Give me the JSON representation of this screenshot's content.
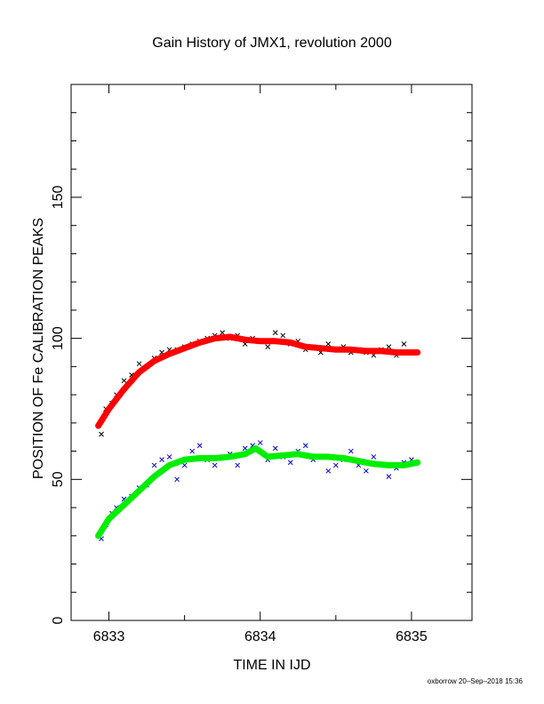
{
  "chart_data": {
    "type": "scatter",
    "title": "Gain History of JMX1, revolution 2000",
    "xlabel": "TIME IN IJD",
    "ylabel": "POSITION OF Fe CALIBRATION PEAKS",
    "xlim": [
      6832.75,
      6835.4
    ],
    "ylim": [
      0,
      190
    ],
    "xticks": [
      "6833",
      "6834",
      "6835"
    ],
    "yticks": [
      "0",
      "50",
      "100",
      "150"
    ],
    "grid": false,
    "footer": "oxborrow 20–Sep–2018 15:36",
    "series": [
      {
        "kind": "points",
        "marker": "x",
        "color": "#000000",
        "x": [
          6832.95,
          6832.98,
          6833.02,
          6833.05,
          6833.1,
          6833.15,
          6833.2,
          6833.25,
          6833.3,
          6833.35,
          6833.4,
          6833.45,
          6833.5,
          6833.55,
          6833.6,
          6833.65,
          6833.7,
          6833.75,
          6833.8,
          6833.85,
          6833.9,
          6833.95,
          6834.0,
          6834.05,
          6834.1,
          6834.15,
          6834.2,
          6834.25,
          6834.3,
          6834.35,
          6834.4,
          6834.45,
          6834.5,
          6834.55,
          6834.6,
          6834.65,
          6834.7,
          6834.75,
          6834.8,
          6834.85,
          6834.9,
          6834.95,
          6835.0
        ],
        "y": [
          66,
          75,
          77,
          80,
          85,
          87,
          91,
          90,
          93,
          95,
          96,
          96,
          97,
          98,
          99,
          100,
          101,
          102,
          100,
          101,
          98,
          100,
          99,
          97,
          102,
          101,
          98,
          99,
          96,
          97,
          95,
          98,
          96,
          97,
          95,
          96,
          95,
          94,
          96,
          97,
          94,
          98,
          95
        ]
      },
      {
        "kind": "curve",
        "color": "#ff0000",
        "x": [
          6832.93,
          6833.0,
          6833.1,
          6833.2,
          6833.3,
          6833.4,
          6833.5,
          6833.6,
          6833.7,
          6833.8,
          6833.9,
          6834.0,
          6834.1,
          6834.2,
          6834.3,
          6834.4,
          6834.5,
          6834.6,
          6834.7,
          6834.8,
          6834.9,
          6835.04
        ],
        "y": [
          69,
          75,
          82,
          88,
          92,
          94.5,
          96.5,
          98.5,
          100,
          100.5,
          99.5,
          99,
          99,
          98.5,
          97,
          96.5,
          96,
          96,
          95.5,
          95.5,
          95,
          95
        ]
      },
      {
        "kind": "points",
        "marker": "x",
        "color": "#0000cc",
        "x": [
          6832.95,
          6832.98,
          6833.02,
          6833.05,
          6833.1,
          6833.15,
          6833.2,
          6833.25,
          6833.3,
          6833.35,
          6833.4,
          6833.45,
          6833.5,
          6833.55,
          6833.6,
          6833.65,
          6833.7,
          6833.75,
          6833.8,
          6833.85,
          6833.9,
          6833.95,
          6834.0,
          6834.05,
          6834.1,
          6834.15,
          6834.2,
          6834.25,
          6834.3,
          6834.35,
          6834.4,
          6834.45,
          6834.5,
          6834.55,
          6834.6,
          6834.65,
          6834.7,
          6834.75,
          6834.8,
          6834.85,
          6834.9,
          6834.95,
          6835.0
        ],
        "y": [
          29,
          34,
          38,
          40,
          43,
          44,
          47,
          48,
          55,
          57,
          58,
          50,
          55,
          60,
          62,
          57,
          55,
          58,
          59,
          55,
          61,
          62,
          63,
          57,
          61,
          58,
          56,
          60,
          62,
          57,
          58,
          53,
          55,
          57,
          60,
          55,
          53,
          58,
          55,
          51,
          54,
          56,
          57
        ]
      },
      {
        "kind": "curve",
        "color": "#00ee00",
        "x": [
          6832.93,
          6833.0,
          6833.1,
          6833.2,
          6833.3,
          6833.4,
          6833.5,
          6833.6,
          6833.7,
          6833.8,
          6833.9,
          6833.97,
          6834.05,
          6834.15,
          6834.25,
          6834.35,
          6834.45,
          6834.55,
          6834.65,
          6834.75,
          6834.85,
          6834.95,
          6835.04
        ],
        "y": [
          30,
          36,
          41,
          46,
          51,
          55,
          57,
          57.5,
          57.5,
          58,
          59,
          61,
          58,
          58.5,
          59,
          58,
          58,
          57.5,
          56.5,
          55.5,
          55,
          55,
          56
        ]
      }
    ]
  }
}
